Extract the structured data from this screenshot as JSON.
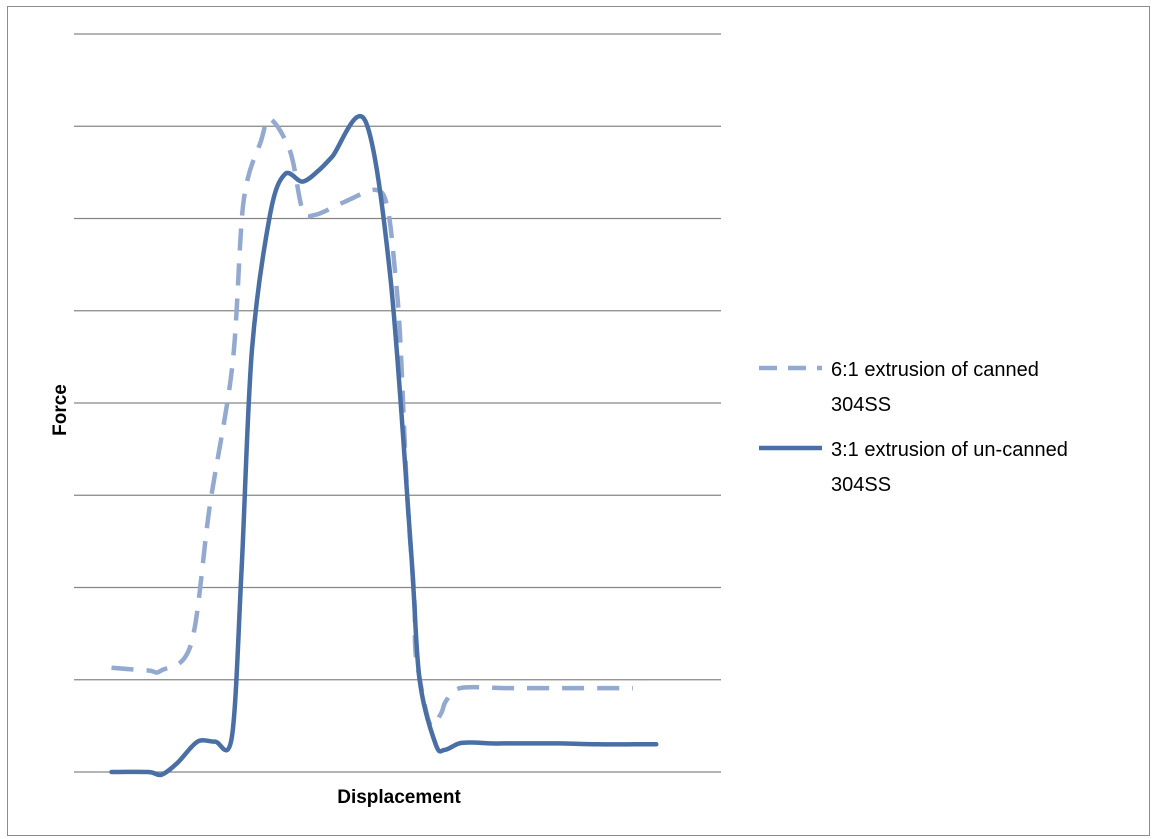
{
  "chart_data": {
    "type": "line",
    "title": "",
    "xlabel": "Displacement",
    "ylabel": "Force",
    "ylim": [
      0,
      8
    ],
    "xlim": [
      0,
      100
    ],
    "grid": {
      "horizontal": true,
      "vertical": false,
      "lines": 9
    },
    "tick_labels": {
      "x": [],
      "y": []
    },
    "legend_position": "right",
    "series": [
      {
        "name": "6:1 extrusion of canned 304SS",
        "style": "dashed",
        "color": "#93a9cf",
        "x": [
          5.8,
          11.5,
          13.5,
          18.1,
          21.0,
          24.5,
          26.2,
          28.9,
          30.3,
          33.4,
          35.3,
          37.3,
          41.8,
          46.7,
          48.5,
          49.7,
          50.4,
          51.5,
          52.6,
          52.7,
          53.1,
          55.0,
          56.7,
          57.5,
          59.7,
          67.0,
          76.7,
          86.4
        ],
        "y": [
          1.13,
          1.1,
          1.1,
          1.39,
          2.89,
          4.42,
          6.18,
          6.84,
          7.08,
          6.73,
          6.1,
          6.04,
          6.18,
          6.31,
          6.1,
          5.36,
          4.72,
          3.0,
          1.88,
          1.41,
          1.14,
          0.52,
          0.63,
          0.77,
          0.91,
          0.91,
          0.91,
          0.91
        ]
      },
      {
        "name": "3:1 extrusion of un-canned 304SS",
        "style": "solid",
        "color": "#4a6fa5",
        "x": [
          5.8,
          11.5,
          13.5,
          16.0,
          19.1,
          21.8,
          24.4,
          25.9,
          27.5,
          30.3,
          32.6,
          35.3,
          37.8,
          39.9,
          45.0,
          48.9,
          52.1,
          53.4,
          55.9,
          57.3,
          59.5,
          61.6,
          64.4,
          66.3,
          69.8,
          75.0,
          80.8,
          86.8,
          90.0
        ],
        "y": [
          0.0,
          0.0,
          -0.03,
          0.1,
          0.33,
          0.33,
          0.38,
          2.2,
          4.57,
          6.04,
          6.48,
          6.4,
          6.52,
          6.67,
          7.06,
          5.36,
          2.39,
          1.01,
          0.3,
          0.24,
          0.31,
          0.32,
          0.31,
          0.31,
          0.31,
          0.31,
          0.3,
          0.3,
          0.3
        ]
      }
    ]
  }
}
